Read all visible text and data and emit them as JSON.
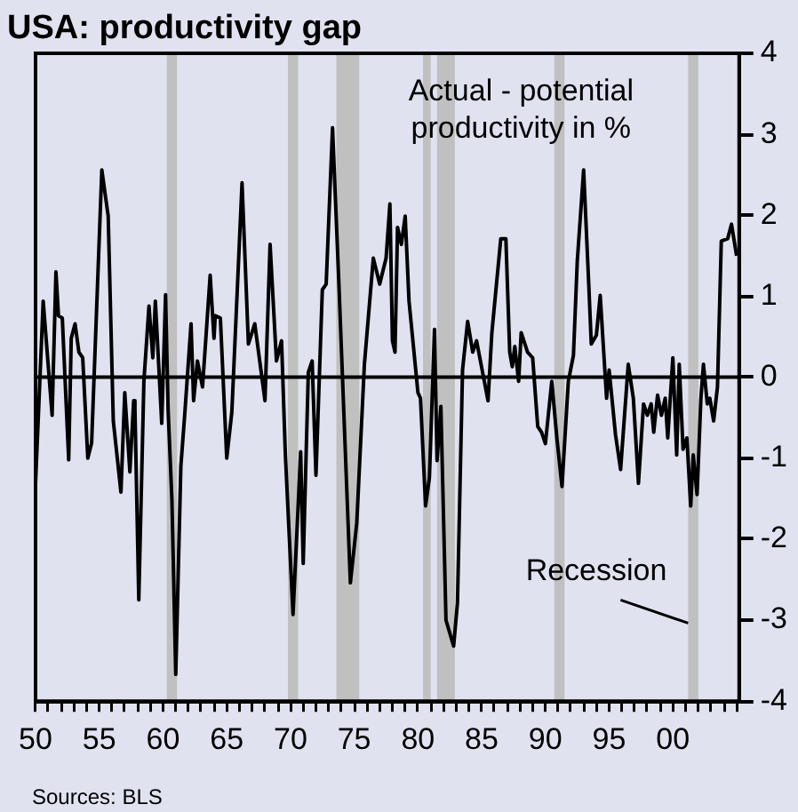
{
  "chart_data": {
    "type": "line",
    "title": "USA: productivity gap",
    "annotations": [
      "Actual - potential productivity in %",
      "Sources: BLS"
    ],
    "x": [
      1950.0,
      1950.6,
      1951.3,
      1951.6,
      1951.8,
      1952.1,
      1952.6,
      1952.8,
      1953.1,
      1953.4,
      1953.7,
      1954.1,
      1954.4,
      1954.8,
      1955.2,
      1955.7,
      1956.1,
      1956.7,
      1957.0,
      1957.4,
      1957.7,
      1957.8,
      1958.1,
      1958.5,
      1958.9,
      1959.2,
      1959.4,
      1959.9,
      1960.2,
      1960.4,
      1960.7,
      1961.0,
      1961.4,
      1961.7,
      1962.2,
      1962.4,
      1962.7,
      1963.1,
      1963.7,
      1964.0,
      1964.1,
      1964.5,
      1965.0,
      1965.4,
      1966.2,
      1966.7,
      1967.2,
      1968.0,
      1968.4,
      1968.9,
      1969.3,
      1969.6,
      1970.2,
      1970.8,
      1971.0,
      1971.4,
      1971.7,
      1972.0,
      1972.5,
      1972.8,
      1973.3,
      1973.8,
      1974.7,
      1975.2,
      1975.8,
      1976.5,
      1977.0,
      1977.5,
      1977.8,
      1978.0,
      1978.2,
      1978.4,
      1978.7,
      1979.0,
      1979.3,
      1980.0,
      1980.2,
      1980.6,
      1980.9,
      1981.3,
      1981.5,
      1981.8,
      1982.2,
      1982.8,
      1983.1,
      1983.5,
      1983.9,
      1984.3,
      1984.6,
      1985.5,
      1985.8,
      1986.5,
      1986.9,
      1987.2,
      1987.4,
      1987.6,
      1987.9,
      1988.1,
      1988.6,
      1989.0,
      1989.4,
      1989.7,
      1990.0,
      1990.5,
      1990.9,
      1991.3,
      1991.8,
      1992.2,
      1992.5,
      1993.0,
      1993.4,
      1993.6,
      1994.0,
      1994.3,
      1994.8,
      1995.0,
      1995.5,
      1995.9,
      1996.5,
      1996.9,
      1997.3,
      1997.7,
      1998.0,
      1998.3,
      1998.5,
      1998.8,
      1999.1,
      1999.4,
      1999.6,
      2000.0,
      2000.3,
      2000.5,
      2000.8,
      2001.1,
      2001.4,
      2001.6,
      2001.9,
      2002.2,
      2002.4,
      2002.7,
      2002.9,
      2003.2,
      2003.5,
      2003.8,
      2004.3,
      2004.6,
      2005.0
    ],
    "series": [
      {
        "color": "#000000",
        "values": [
          -1.31,
          0.94,
          -0.47,
          1.3,
          0.76,
          0.73,
          -1.02,
          0.48,
          0.66,
          0.31,
          0.24,
          -1.0,
          -0.81,
          0.88,
          2.56,
          1.99,
          -0.54,
          -1.42,
          -0.19,
          -1.17,
          -0.29,
          -0.4,
          -2.75,
          -0.05,
          0.88,
          0.24,
          0.94,
          -0.57,
          1.02,
          -0.4,
          -1.52,
          -3.67,
          -1.1,
          -0.47,
          0.66,
          -0.29,
          0.2,
          -0.12,
          1.26,
          0.48,
          0.76,
          0.73,
          -1.0,
          -0.43,
          2.4,
          0.41,
          0.66,
          -0.29,
          1.64,
          0.2,
          0.45,
          -0.96,
          -2.93,
          -0.92,
          -2.3,
          0.06,
          0.2,
          -1.21,
          1.08,
          1.15,
          3.08,
          1.15,
          -2.54,
          -1.8,
          0.16,
          1.47,
          1.15,
          1.47,
          2.14,
          0.45,
          0.31,
          1.85,
          1.64,
          1.99,
          0.94,
          -0.19,
          -0.26,
          -1.59,
          -1.24,
          0.59,
          -1.03,
          -0.36,
          -3.0,
          -3.32,
          -2.79,
          0.09,
          0.69,
          0.31,
          0.45,
          -0.29,
          0.55,
          1.71,
          1.71,
          0.31,
          0.13,
          0.38,
          -0.05,
          0.55,
          0.31,
          0.24,
          -0.61,
          -0.68,
          -0.82,
          -0.05,
          -0.75,
          -1.35,
          -0.05,
          0.27,
          1.43,
          2.56,
          1.15,
          0.41,
          0.52,
          1.01,
          -0.26,
          0.09,
          -0.71,
          -1.14,
          0.16,
          -0.26,
          -1.31,
          -0.33,
          -0.47,
          -0.33,
          -0.68,
          -0.22,
          -0.47,
          -0.26,
          -0.75,
          0.24,
          -0.96,
          0.16,
          -0.89,
          -0.75,
          -1.59,
          -0.96,
          -1.45,
          -0.26,
          0.16,
          -0.33,
          -0.26,
          -0.54,
          -0.12,
          1.68,
          1.71,
          1.89,
          1.5
        ]
      }
    ],
    "xlim": [
      1950,
      2005.2
    ],
    "xticks": [
      {
        "value": 1950,
        "label": "50"
      },
      {
        "value": 1951,
        "label": null
      },
      {
        "value": 1952,
        "label": null
      },
      {
        "value": 1953,
        "label": null
      },
      {
        "value": 1954,
        "label": null
      },
      {
        "value": 1955,
        "label": "55"
      },
      {
        "value": 1956,
        "label": null
      },
      {
        "value": 1957,
        "label": null
      },
      {
        "value": 1958,
        "label": null
      },
      {
        "value": 1959,
        "label": null
      },
      {
        "value": 1960,
        "label": "60"
      },
      {
        "value": 1961,
        "label": null
      },
      {
        "value": 1962,
        "label": null
      },
      {
        "value": 1963,
        "label": null
      },
      {
        "value": 1964,
        "label": null
      },
      {
        "value": 1965,
        "label": "65"
      },
      {
        "value": 1966,
        "label": null
      },
      {
        "value": 1967,
        "label": null
      },
      {
        "value": 1968,
        "label": null
      },
      {
        "value": 1969,
        "label": null
      },
      {
        "value": 1970,
        "label": "70"
      },
      {
        "value": 1971,
        "label": null
      },
      {
        "value": 1972,
        "label": null
      },
      {
        "value": 1973,
        "label": null
      },
      {
        "value": 1974,
        "label": null
      },
      {
        "value": 1975,
        "label": "75"
      },
      {
        "value": 1976,
        "label": null
      },
      {
        "value": 1977,
        "label": null
      },
      {
        "value": 1978,
        "label": null
      },
      {
        "value": 1979,
        "label": null
      },
      {
        "value": 1980,
        "label": "80"
      },
      {
        "value": 1981,
        "label": null
      },
      {
        "value": 1982,
        "label": null
      },
      {
        "value": 1983,
        "label": null
      },
      {
        "value": 1984,
        "label": null
      },
      {
        "value": 1985,
        "label": "85"
      },
      {
        "value": 1986,
        "label": null
      },
      {
        "value": 1987,
        "label": null
      },
      {
        "value": 1988,
        "label": null
      },
      {
        "value": 1989,
        "label": null
      },
      {
        "value": 1990,
        "label": "90"
      },
      {
        "value": 1991,
        "label": null
      },
      {
        "value": 1992,
        "label": null
      },
      {
        "value": 1993,
        "label": null
      },
      {
        "value": 1994,
        "label": null
      },
      {
        "value": 1995,
        "label": "95"
      },
      {
        "value": 1996,
        "label": null
      },
      {
        "value": 1997,
        "label": null
      },
      {
        "value": 1998,
        "label": null
      },
      {
        "value": 1999,
        "label": null
      },
      {
        "value": 2000,
        "label": "00"
      },
      {
        "value": 2001,
        "label": null
      },
      {
        "value": 2002,
        "label": null
      },
      {
        "value": 2003,
        "label": null
      },
      {
        "value": 2004,
        "label": null
      },
      {
        "value": 2005,
        "label": null
      }
    ],
    "ylim": [
      -4,
      4
    ],
    "yticks": [
      -4,
      -3,
      -2,
      -1,
      0,
      1,
      2,
      3,
      4
    ],
    "grid": false,
    "legend": false,
    "marker": "none",
    "line_style": "solid",
    "ref_lines": [
      {
        "axis": "y",
        "value": 0,
        "color": "#000000"
      }
    ],
    "bands": [
      {
        "axis": "x",
        "from": 1960.3,
        "to": 1961.1,
        "color": "#c0c0c0"
      },
      {
        "axis": "x",
        "from": 1969.8,
        "to": 1970.6,
        "color": "#c0c0c0"
      },
      {
        "axis": "x",
        "from": 1973.6,
        "to": 1975.4,
        "color": "#c0c0c0"
      },
      {
        "axis": "x",
        "from": 1980.4,
        "to": 1981.0,
        "color": "#c0c0c0"
      },
      {
        "axis": "x",
        "from": 1981.5,
        "to": 1982.9,
        "color": "#c0c0c0"
      },
      {
        "axis": "x",
        "from": 1990.7,
        "to": 1991.5,
        "color": "#c0c0c0"
      },
      {
        "axis": "x",
        "from": 2001.2,
        "to": 2002.0,
        "color": "#c0c0c0",
        "label": "Recession"
      }
    ]
  }
}
